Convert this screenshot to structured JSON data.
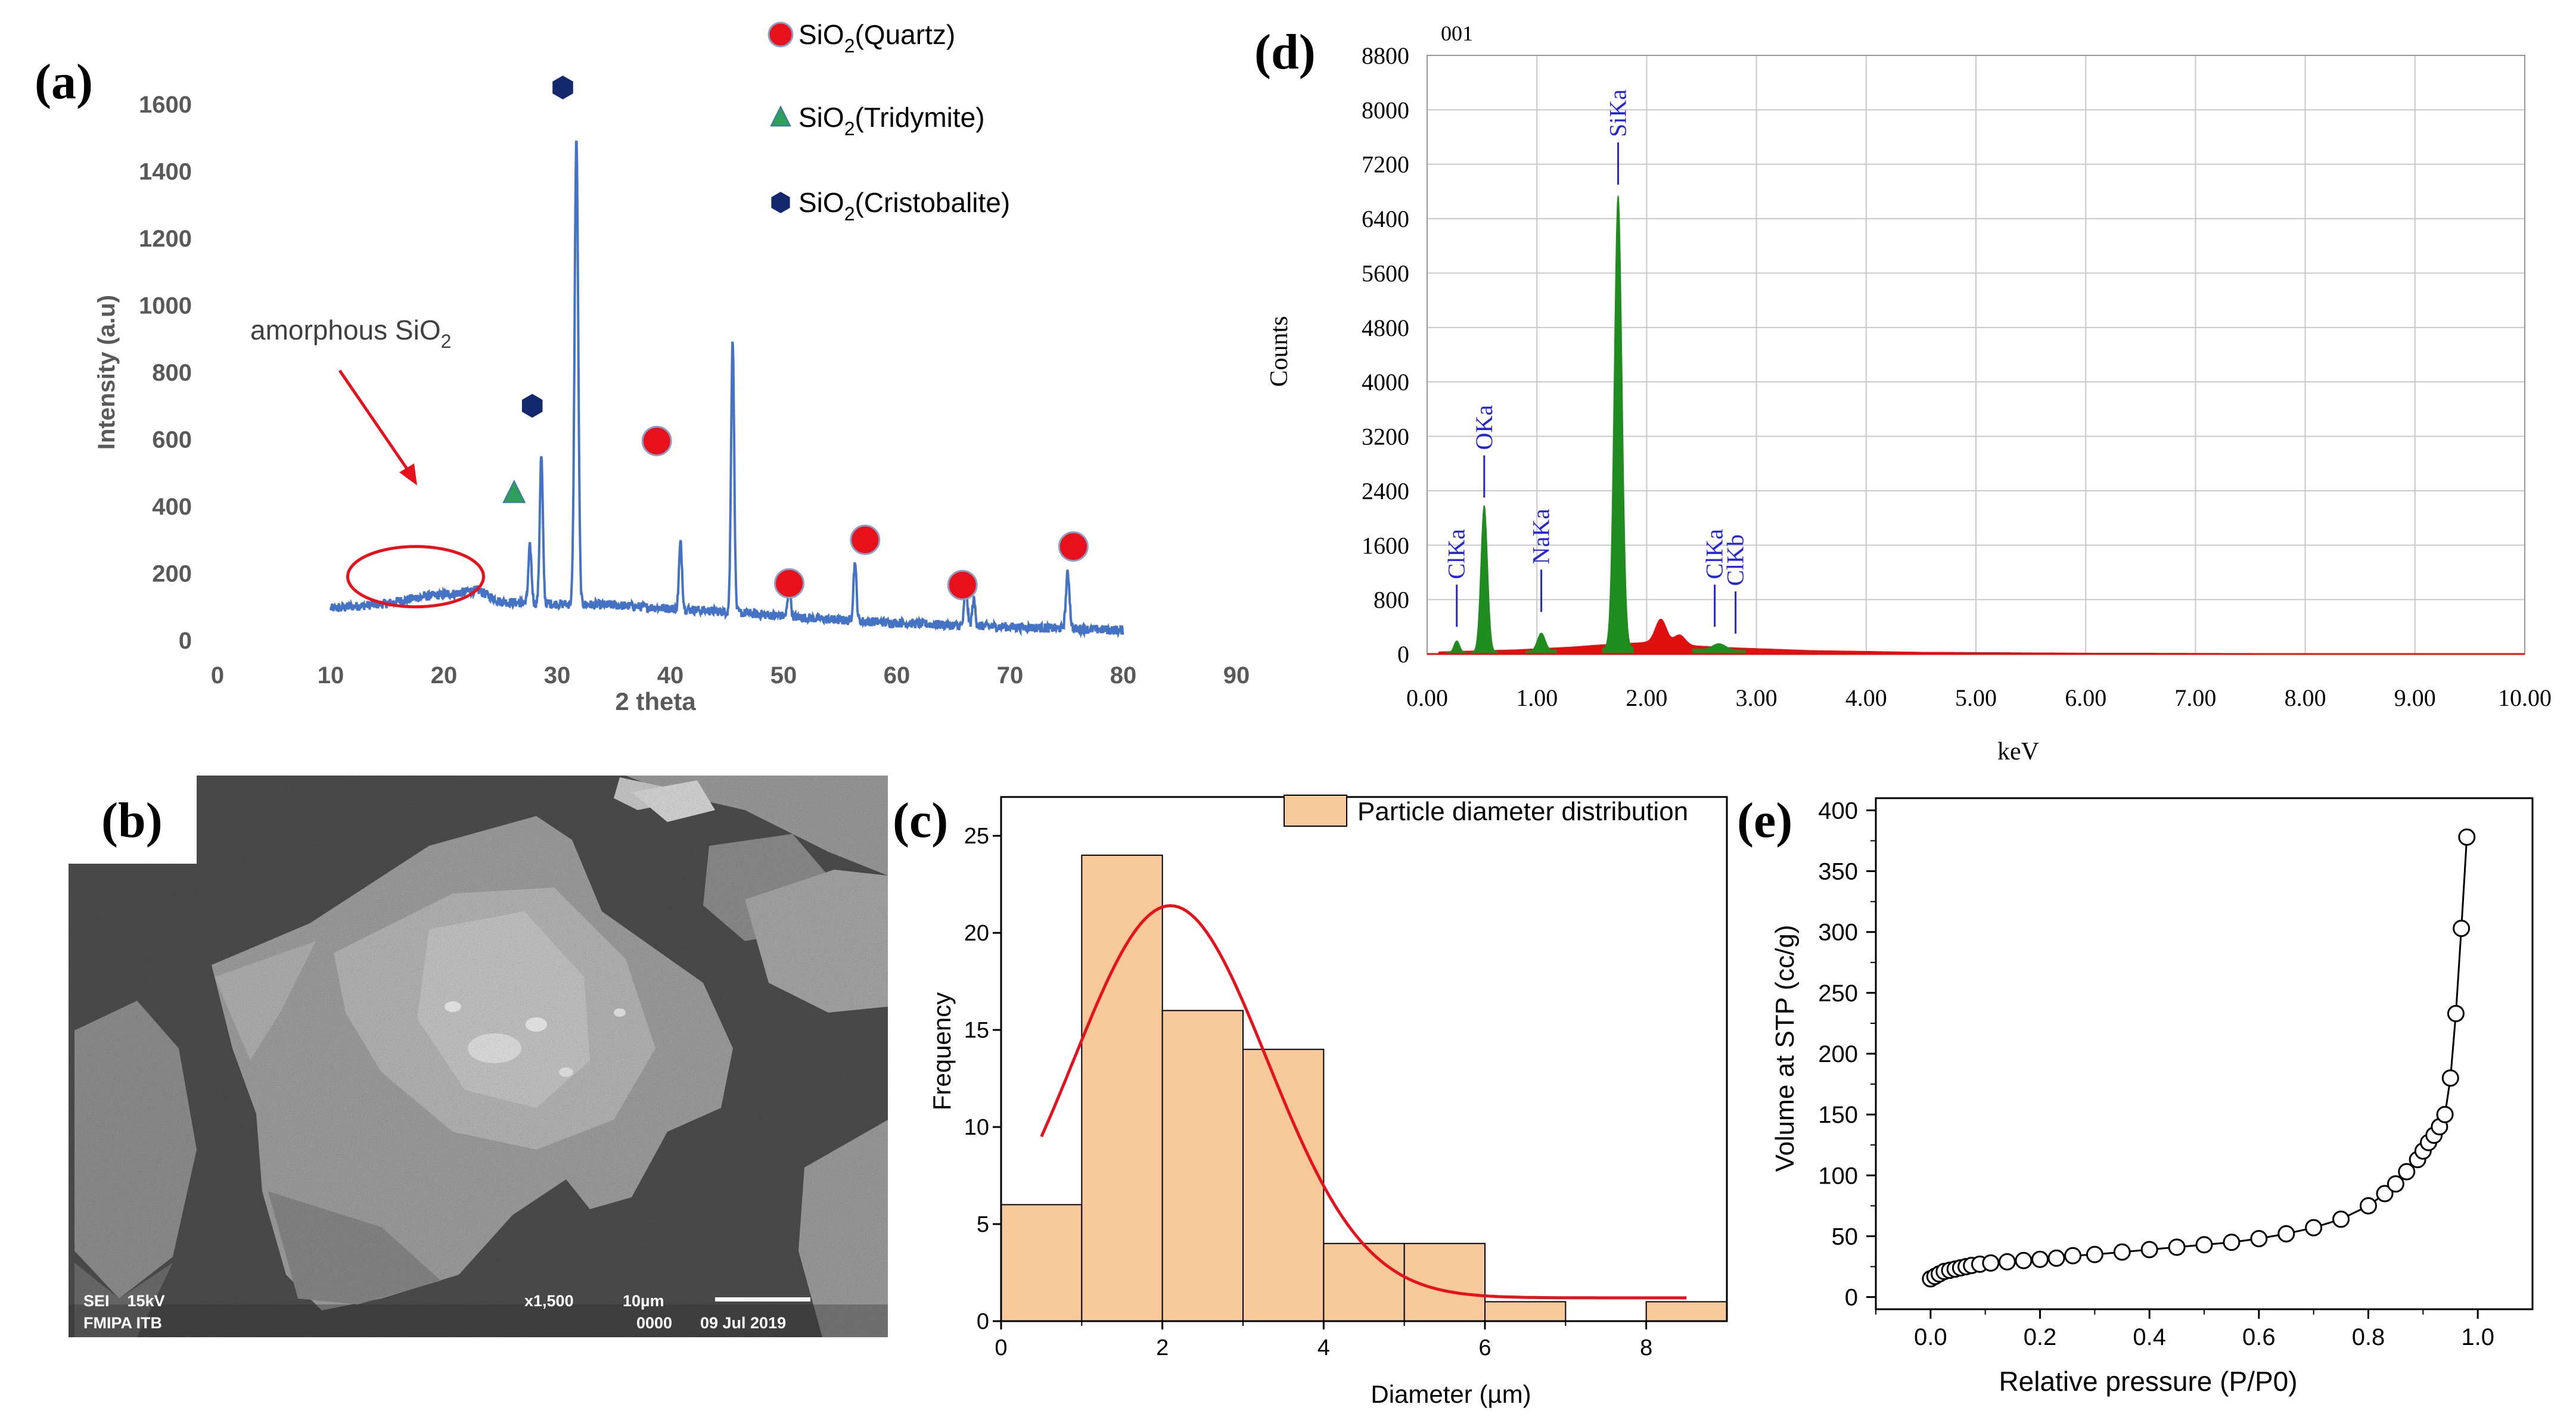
{
  "colors": {
    "xrd_line": "#4472C4",
    "quartz": "#E8111B",
    "tridymite": "#2E9E5B",
    "cristobalite": "#14286E",
    "eds_green": "#1E8C1E",
    "eds_red": "#E01010",
    "eds_label": "#2525D8",
    "hist_fill": "#F8C99A",
    "fit_red": "#E8111B",
    "grid": "#c8c8c8"
  },
  "chart_data": [
    {
      "id": "a",
      "panel_label": "(a)",
      "type": "line",
      "title": "",
      "xlabel": "2 theta",
      "ylabel": "Intensity (a.u)",
      "xlim": [
        0,
        90
      ],
      "ylim": [
        0,
        1600
      ],
      "xticks": [
        "0",
        "10",
        "20",
        "30",
        "40",
        "50",
        "60",
        "70",
        "80",
        "90"
      ],
      "yticks": [
        "0",
        "200",
        "400",
        "600",
        "800",
        "1000",
        "1200",
        "1400",
        "1600"
      ],
      "baseline": [
        [
          10,
          95
        ],
        [
          15,
          110
        ],
        [
          18,
          130
        ],
        [
          21,
          140
        ],
        [
          23,
          150
        ],
        [
          25,
          115
        ],
        [
          28,
          110
        ],
        [
          35,
          105
        ],
        [
          45,
          85
        ],
        [
          55,
          60
        ],
        [
          65,
          45
        ],
        [
          75,
          35
        ],
        [
          80,
          30
        ]
      ],
      "peaks": [
        {
          "x": 27.6,
          "y": 280,
          "w": 0.3
        },
        {
          "x": 28.6,
          "y": 550,
          "w": 0.3
        },
        {
          "x": 31.7,
          "y": 1500,
          "w": 0.35
        },
        {
          "x": 40.9,
          "y": 290,
          "w": 0.3
        },
        {
          "x": 45.5,
          "y": 900,
          "w": 0.3
        },
        {
          "x": 50.5,
          "y": 150,
          "w": 0.3
        },
        {
          "x": 56.3,
          "y": 230,
          "w": 0.3
        },
        {
          "x": 66.1,
          "y": 160,
          "w": 0.3
        },
        {
          "x": 66.8,
          "y": 120,
          "w": 0.3
        },
        {
          "x": 75.1,
          "y": 200,
          "w": 0.35
        }
      ],
      "markers": [
        {
          "phase": "cristobalite",
          "x": 30.5,
          "y": 1650
        },
        {
          "phase": "cristobalite",
          "x": 27.8,
          "y": 700
        },
        {
          "phase": "tridymite",
          "x": 26.2,
          "y": 440
        },
        {
          "phase": "quartz",
          "x": 38.8,
          "y": 595
        },
        {
          "phase": "quartz",
          "x": 50.5,
          "y": 170
        },
        {
          "phase": "quartz",
          "x": 57.2,
          "y": 300
        },
        {
          "phase": "quartz",
          "x": 65.8,
          "y": 165
        },
        {
          "phase": "quartz",
          "x": 75.6,
          "y": 280
        }
      ],
      "legend": [
        {
          "phase": "quartz",
          "label": "SiO",
          "sub": "2",
          "suffix": "(Quartz)"
        },
        {
          "phase": "tridymite",
          "label": "SiO",
          "sub": "2",
          "suffix": "(Tridymite)"
        },
        {
          "phase": "cristobalite",
          "label": "SiO",
          "sub": "2",
          "suffix": "(Cristobalite)"
        }
      ],
      "annotation": {
        "text": "amorphous SiO",
        "sub": "2",
        "ellipse_center": [
          17.5,
          190
        ],
        "ellipse_radii": [
          6,
          90
        ]
      }
    },
    {
      "id": "d",
      "panel_label": "(d)",
      "type": "bar",
      "title": "",
      "corner_label": "001",
      "xlabel": "keV",
      "ylabel": "Counts",
      "xlim": [
        0,
        10
      ],
      "ylim": [
        0,
        8800
      ],
      "xticks": [
        "0.00",
        "1.00",
        "2.00",
        "3.00",
        "4.00",
        "5.00",
        "6.00",
        "7.00",
        "8.00",
        "9.00",
        "10.00"
      ],
      "yticks": [
        "0",
        "800",
        "1600",
        "2400",
        "3200",
        "4000",
        "4800",
        "5600",
        "6400",
        "7200",
        "8000",
        "8800"
      ],
      "green_peaks": [
        {
          "x": 0.27,
          "y": 170,
          "w": 0.025
        },
        {
          "x": 0.52,
          "y": 2150,
          "w": 0.03
        },
        {
          "x": 1.04,
          "y": 260,
          "w": 0.035
        },
        {
          "x": 1.74,
          "y": 6650,
          "w": 0.035
        },
        {
          "x": 2.66,
          "y": 90,
          "w": 0.06
        }
      ],
      "red_background": [
        [
          0.1,
          30
        ],
        [
          0.8,
          60
        ],
        [
          1.3,
          100
        ],
        [
          1.55,
          130
        ],
        [
          2.0,
          170
        ],
        [
          2.3,
          130
        ],
        [
          2.8,
          90
        ],
        [
          3.5,
          50
        ],
        [
          4.5,
          25
        ],
        [
          6,
          12
        ],
        [
          8,
          6
        ],
        [
          10,
          0
        ]
      ],
      "red_peaks": [
        {
          "x": 2.13,
          "y": 360,
          "w": 0.05
        },
        {
          "x": 2.3,
          "y": 150,
          "w": 0.05
        }
      ],
      "line_markers": [
        {
          "label": "ClKa",
          "x": 0.27,
          "y0": 400,
          "y1": 1060
        },
        {
          "label": "OKa",
          "x": 0.52,
          "y0": 2300,
          "y1": 2960
        },
        {
          "label": "NaKa",
          "x": 1.04,
          "y0": 620,
          "y1": 1280
        },
        {
          "label": "SiKa",
          "x": 1.74,
          "y0": 6900,
          "y1": 7560
        },
        {
          "label": "ClKa",
          "x": 2.62,
          "y0": 400,
          "y1": 1060
        },
        {
          "label": "ClKb",
          "x": 2.81,
          "y0": 300,
          "y1": 960
        }
      ]
    },
    {
      "id": "c",
      "panel_label": "(c)",
      "type": "bar",
      "title": "",
      "xlabel": "Diameter (µm)",
      "ylabel": "Frequency",
      "xlim": [
        0,
        9
      ],
      "ylim": [
        0,
        27
      ],
      "xticks": [
        "0",
        "2",
        "4",
        "6",
        "8"
      ],
      "yticks": [
        "0",
        "5",
        "10",
        "15",
        "20",
        "25"
      ],
      "bins": [
        {
          "x0": 0,
          "x1": 1,
          "count": 6
        },
        {
          "x0": 1,
          "x1": 2,
          "count": 24
        },
        {
          "x0": 2,
          "x1": 3,
          "count": 16
        },
        {
          "x0": 3,
          "x1": 4,
          "count": 14
        },
        {
          "x0": 4,
          "x1": 5,
          "count": 4
        },
        {
          "x0": 5,
          "x1": 6,
          "count": 4
        },
        {
          "x0": 6,
          "x1": 7,
          "count": 1
        },
        {
          "x0": 7,
          "x1": 8,
          "count": 0
        },
        {
          "x0": 8,
          "x1": 9,
          "count": 1
        }
      ],
      "legend": "Particle diameter distribution",
      "fit_curve": {
        "x_from": 0.5,
        "x_to": 8.5,
        "baseline": 1.2,
        "amplitude": 20.2,
        "mean": 2.1,
        "sd": 1.2
      }
    },
    {
      "id": "e",
      "panel_label": "(e)",
      "type": "scatter",
      "title": "",
      "xlabel": "Relative pressure (P/P0)",
      "ylabel": "Volume at STP (cc/g)",
      "xlim": [
        -0.1,
        1.1
      ],
      "ylim": [
        -10,
        410
      ],
      "xticks": [
        "0.0",
        "0.2",
        "0.4",
        "0.6",
        "0.8",
        "1.0"
      ],
      "yticks": [
        "0",
        "50",
        "100",
        "150",
        "200",
        "250",
        "300",
        "350",
        "400"
      ],
      "points": [
        [
          0.0,
          15
        ],
        [
          0.008,
          17
        ],
        [
          0.016,
          19
        ],
        [
          0.025,
          21
        ],
        [
          0.035,
          22
        ],
        [
          0.045,
          23
        ],
        [
          0.055,
          24
        ],
        [
          0.065,
          25
        ],
        [
          0.075,
          26
        ],
        [
          0.09,
          27
        ],
        [
          0.11,
          28
        ],
        [
          0.14,
          29
        ],
        [
          0.17,
          30
        ],
        [
          0.2,
          31
        ],
        [
          0.23,
          32
        ],
        [
          0.26,
          34
        ],
        [
          0.3,
          35
        ],
        [
          0.35,
          37
        ],
        [
          0.4,
          39
        ],
        [
          0.45,
          41
        ],
        [
          0.5,
          43
        ],
        [
          0.55,
          45
        ],
        [
          0.6,
          48
        ],
        [
          0.65,
          52
        ],
        [
          0.7,
          57
        ],
        [
          0.75,
          64
        ],
        [
          0.8,
          75
        ],
        [
          0.83,
          85
        ],
        [
          0.85,
          93
        ],
        [
          0.87,
          103
        ],
        [
          0.89,
          113
        ],
        [
          0.9,
          120
        ],
        [
          0.91,
          127
        ],
        [
          0.92,
          133
        ],
        [
          0.93,
          140
        ],
        [
          0.94,
          150
        ],
        [
          0.95,
          180
        ],
        [
          0.96,
          233
        ],
        [
          0.97,
          303
        ],
        [
          0.98,
          378
        ]
      ]
    }
  ],
  "sem_panel": {
    "panel_label": "(b)",
    "info_line1_left": "SEI    15kV",
    "info_line2_left": "FMIPA ITB",
    "magnification": "x1,500",
    "scale": "10µm",
    "code": "0000",
    "date": "09 Jul 2019"
  }
}
